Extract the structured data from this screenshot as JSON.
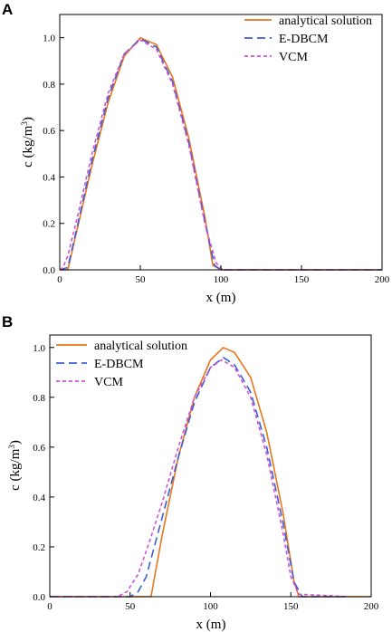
{
  "chart_data": [
    {
      "type": "line",
      "panel": "A",
      "xlabel": "x (m)",
      "ylabel_main": "c (kg/m",
      "ylabel_sup": "3",
      "ylabel_tail": ")",
      "xlim": [
        0,
        200
      ],
      "ylim": [
        0,
        1.1
      ],
      "xticks": [
        0,
        50,
        100,
        150,
        200
      ],
      "yticks": [
        0.0,
        0.2,
        0.4,
        0.6,
        0.8,
        1.0
      ],
      "xtick_labels": [
        "0",
        "50",
        "100",
        "150",
        "200"
      ],
      "ytick_labels": [
        "0.0",
        "0.2",
        "0.4",
        "0.6",
        "0.8",
        "1.0"
      ],
      "grid": false,
      "legend_position": "top-right",
      "series": [
        {
          "name": "analytical solution",
          "color": "#e8761c",
          "dash": "solid",
          "x": [
            0,
            5,
            10,
            20,
            30,
            40,
            50,
            60,
            70,
            80,
            90,
            95,
            100,
            200
          ],
          "y": [
            0,
            0,
            0.15,
            0.45,
            0.72,
            0.92,
            1.0,
            0.97,
            0.83,
            0.57,
            0.23,
            0.02,
            0,
            0
          ]
        },
        {
          "name": "E-DBCM",
          "color": "#3a5fd4",
          "dash": "long",
          "x": [
            0,
            5,
            10,
            20,
            30,
            40,
            50,
            60,
            70,
            80,
            90,
            96,
            100,
            200
          ],
          "y": [
            0,
            0.01,
            0.16,
            0.47,
            0.74,
            0.93,
            0.995,
            0.96,
            0.81,
            0.55,
            0.21,
            0.02,
            0,
            0
          ]
        },
        {
          "name": "VCM",
          "color": "#d34fd6",
          "dash": "short",
          "x": [
            0,
            2,
            5,
            10,
            20,
            30,
            40,
            50,
            60,
            70,
            80,
            90,
            97,
            101,
            200
          ],
          "y": [
            0,
            0.01,
            0.06,
            0.2,
            0.5,
            0.76,
            0.93,
            0.99,
            0.95,
            0.8,
            0.54,
            0.2,
            0.03,
            0,
            0
          ]
        }
      ]
    },
    {
      "type": "line",
      "panel": "B",
      "xlabel": "x (m)",
      "ylabel_main": "c (kg/m",
      "ylabel_sup": "3",
      "ylabel_tail": ")",
      "xlim": [
        0,
        200
      ],
      "ylim": [
        0,
        1.05
      ],
      "xticks": [
        0,
        50,
        100,
        150,
        200
      ],
      "yticks": [
        0.0,
        0.2,
        0.4,
        0.6,
        0.8,
        1.0
      ],
      "xtick_labels": [
        "0",
        "50",
        "100",
        "150",
        "200"
      ],
      "ytick_labels": [
        "0.0",
        "0.2",
        "0.4",
        "0.6",
        "0.8",
        "1.0"
      ],
      "grid": false,
      "legend_position": "top-left",
      "series": [
        {
          "name": "analytical solution",
          "color": "#e8761c",
          "dash": "solid",
          "x": [
            0,
            63,
            70,
            80,
            90,
            100,
            108,
            115,
            125,
            135,
            145,
            152,
            155,
            200
          ],
          "y": [
            0,
            0,
            0.25,
            0.56,
            0.8,
            0.95,
            1.0,
            0.98,
            0.88,
            0.66,
            0.34,
            0.06,
            0,
            0
          ]
        },
        {
          "name": "E-DBCM",
          "color": "#3a5fd4",
          "dash": "long",
          "x": [
            0,
            50,
            55,
            60,
            65,
            70,
            80,
            90,
            100,
            108,
            115,
            125,
            135,
            145,
            152,
            157,
            185
          ],
          "y": [
            0,
            0,
            0.02,
            0.08,
            0.2,
            0.32,
            0.56,
            0.78,
            0.92,
            0.96,
            0.93,
            0.82,
            0.6,
            0.3,
            0.06,
            0,
            0
          ]
        },
        {
          "name": "VCM",
          "color": "#d34fd6",
          "dash": "short",
          "x": [
            0,
            42,
            48,
            55,
            62,
            70,
            80,
            90,
            100,
            107,
            115,
            125,
            135,
            145,
            150,
            155,
            185
          ],
          "y": [
            0,
            0,
            0.02,
            0.09,
            0.22,
            0.38,
            0.6,
            0.8,
            0.92,
            0.95,
            0.92,
            0.8,
            0.57,
            0.26,
            0.08,
            0.01,
            0
          ]
        }
      ]
    }
  ]
}
